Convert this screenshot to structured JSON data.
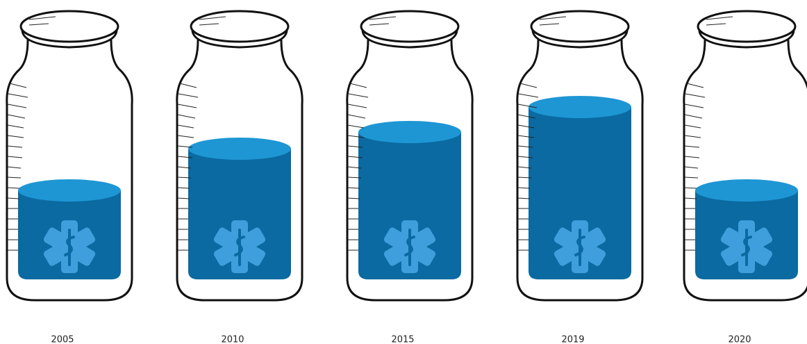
{
  "chart_data": {
    "type": "pictorial-bar",
    "categories": [
      "2005",
      "2010",
      "2015",
      "2019",
      "2020"
    ],
    "values": [
      42,
      62,
      70,
      82,
      42
    ],
    "ylim": [
      0,
      100
    ],
    "color": "#0a6aa1",
    "surface_color": "#1e96d4"
  }
}
